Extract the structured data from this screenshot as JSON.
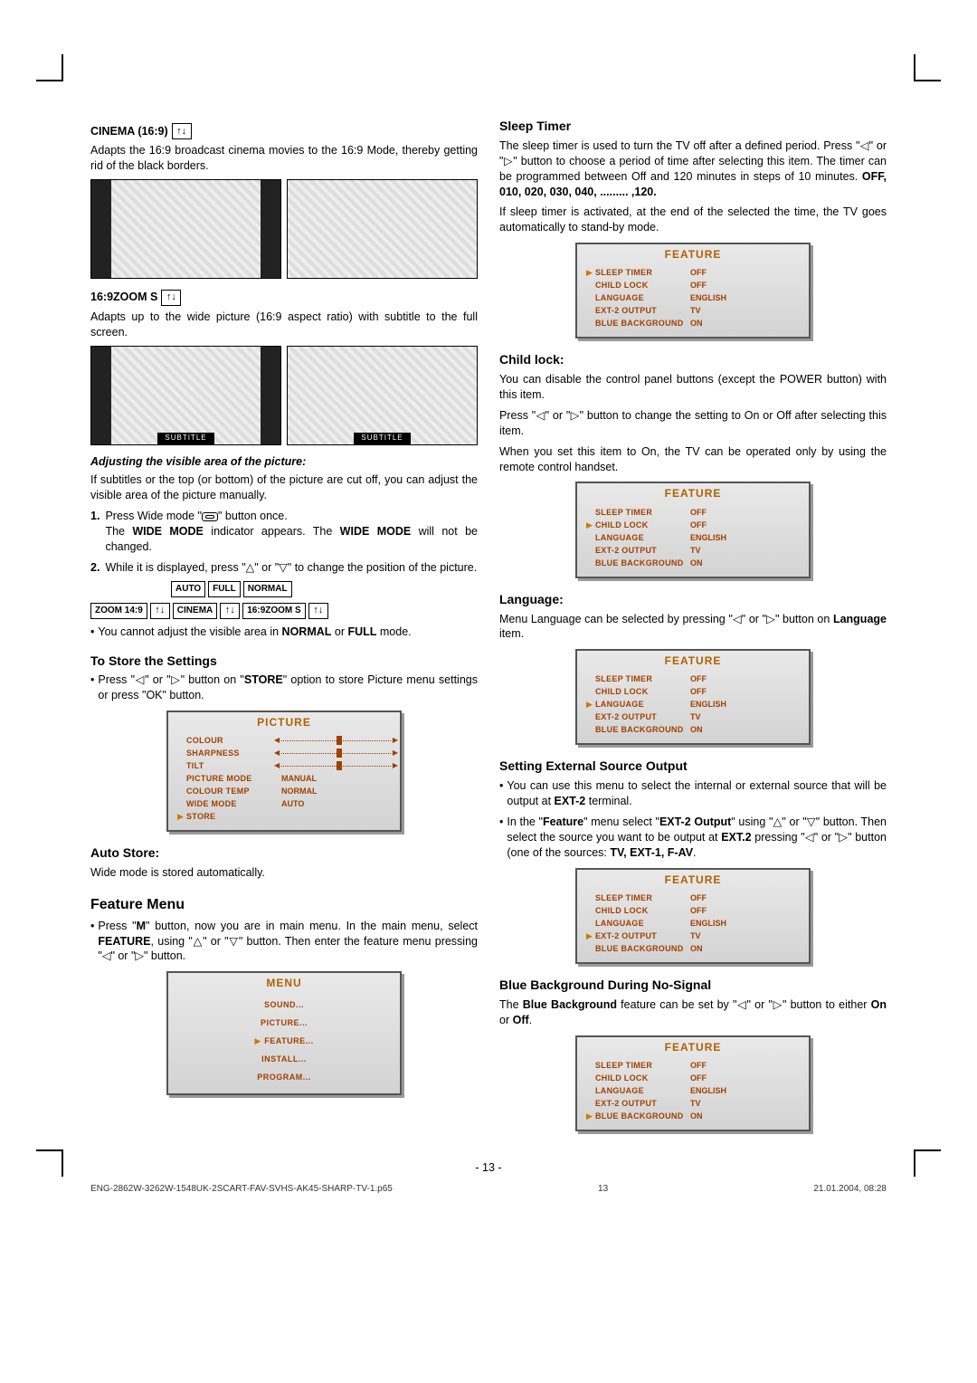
{
  "left": {
    "cinema_heading": "CINEMA (16:9)",
    "arrows_icon": "↑↓",
    "cinema_text": "Adapts the 16:9 broadcast cinema movies to the 16:9 Mode, thereby getting rid of the black borders.",
    "zoom_heading": "16:9ZOOM S",
    "zoom_text": "Adapts up to the wide picture (16:9 aspect ratio) with subtitle to the full screen.",
    "subtitle_label": "SUBTITLE",
    "adjust_heading": "Adjusting the visible area of the picture:",
    "adjust_text": "If subtitles or the top (or bottom) of the picture are cut off, you can adjust the visible area of the picture manually.",
    "step1_num": "1.",
    "step1a": "Press Wide mode \"",
    "step1b": "\" button once.",
    "step1_note_a": "The ",
    "step1_wide": "WIDE MODE",
    "step1_note_b": "  indicator appears. The ",
    "step1_note_c": " will not be changed.",
    "step2_num": "2.",
    "step2": "While it is displayed, press \"△\" or \"▽\" to change the position of the picture.",
    "modes": {
      "auto": "AUTO",
      "full": "FULL",
      "normal": "NORMAL",
      "zoom": "ZOOM 14:9",
      "cinema": "CINEMA",
      "zooms": "16:9ZOOM S"
    },
    "note_bullet": "•",
    "note_a": "You cannot adjust the visible area in ",
    "note_b": "NORMAL",
    "note_c": " or ",
    "note_d": "FULL",
    "note_e": " mode.",
    "store_heading": "To Store the Settings",
    "store_text_a": "Press \"◁\" or \"▷\" button on \"",
    "store_text_b": "STORE",
    "store_text_c": "\" option to store Picture menu settings or press \"OK\" button.",
    "picture_osd": {
      "title": "PICTURE",
      "rows": [
        {
          "label": "COLOUR",
          "type": "slider"
        },
        {
          "label": "SHARPNESS",
          "type": "slider"
        },
        {
          "label": "TILT",
          "type": "slider"
        },
        {
          "label": "PICTURE MODE",
          "val": "MANUAL"
        },
        {
          "label": "COLOUR TEMP",
          "val": "NORMAL"
        },
        {
          "label": "WIDE MODE",
          "val": "AUTO"
        },
        {
          "label": "STORE",
          "val": "",
          "arrow": true
        }
      ]
    },
    "auto_heading": "Auto Store:",
    "auto_text": "Wide mode is stored automatically.",
    "feature_menu_heading": "Feature Menu",
    "feature_menu_text_a": "Press \"",
    "feature_menu_text_m": "M",
    "feature_menu_text_b": "\" button, now you are in main menu. In the main menu, select ",
    "feature_menu_feature": "FEATURE",
    "feature_menu_text_c": ", using \"△\" or \"▽\" button. Then enter the feature menu pressing \"◁\" or \"▷\"  button.",
    "menu_osd": {
      "title": "MENU",
      "items": [
        "SOUND...",
        "PICTURE...",
        "FEATURE...",
        "INSTALL...",
        "PROGRAM..."
      ],
      "selected": 2
    }
  },
  "right": {
    "sleep_heading": "Sleep Timer",
    "sleep_text_a": "The sleep timer is used to turn the TV off after a defined period. Press \"◁\" or \"▷\" button to choose a period of time after selecting this item. The timer can be programmed between Off and 120 minutes in steps of 10 minutes. ",
    "sleep_bold": "OFF, 010, 020, 030, 040, ......... ,120.",
    "sleep_text_b": "If sleep timer is activated, at the end of the selected the time, the TV goes automatically to stand-by mode.",
    "child_heading": "Child lock:",
    "child_text1": "You can disable the control panel buttons (except the POWER button) with this item.",
    "child_text2": "Press \"◁\" or \"▷\" button to change the setting to On or Off after selecting this item.",
    "child_text3": "When you set this item to On, the TV can be operated only by using the remote control handset.",
    "lang_heading": "Language:",
    "lang_text_a": "Menu Language can be selected by pressing \"◁\" or \"▷\" button on ",
    "lang_bold": "Language",
    "lang_text_b": " item.",
    "ext_heading": "Setting External Source Output",
    "ext_b1_a": "You can use this menu to select the internal or external source that will be output at ",
    "ext_b1_bold": "EXT-2",
    "ext_b1_b": " terminal.",
    "ext_b2_a": "In the \"",
    "ext_b2_feature": "Feature",
    "ext_b2_b": "\" menu select \"",
    "ext_b2_ext2": "EXT-2 Output",
    "ext_b2_c": "\" using \"△\" or \"▽\" button. Then select the source you want to be output at ",
    "ext_b2_ext": "EXT.2",
    "ext_b2_d": " pressing \"◁\" or \"▷\" button (one of the sources: ",
    "ext_b2_tv": "TV, EXT-1, F-AV",
    "ext_b2_e": ".",
    "blue_heading": "Blue Background During No-Signal",
    "blue_text_a": "The ",
    "blue_bold": "Blue Background",
    "blue_text_b": " feature can be set by \"◁\" or \"▷\" button to either ",
    "blue_on": "On",
    "blue_or": " or ",
    "blue_off": "Off",
    "blue_text_c": ".",
    "feature_osd": {
      "title": "FEATURE",
      "base_rows": [
        {
          "label": "SLEEP TIMER",
          "val": "OFF"
        },
        {
          "label": "CHILD LOCK",
          "val": "OFF"
        },
        {
          "label": "LANGUAGE",
          "val": "ENGLISH"
        },
        {
          "label": "EXT-2 OUTPUT",
          "val": "TV"
        },
        {
          "label": "BLUE BACKGROUND",
          "val": "ON"
        }
      ]
    }
  },
  "page_number": "- 13 -",
  "footer_left_a": "ENG-2862W-3262W-1548UK-2SCART-FAV-SVHS-AK45-SHARP-TV-1.p65",
  "footer_left_b": "13",
  "footer_right": "21.01.2004, 08:28",
  "colors": {
    "osd_text": "#a04000"
  }
}
